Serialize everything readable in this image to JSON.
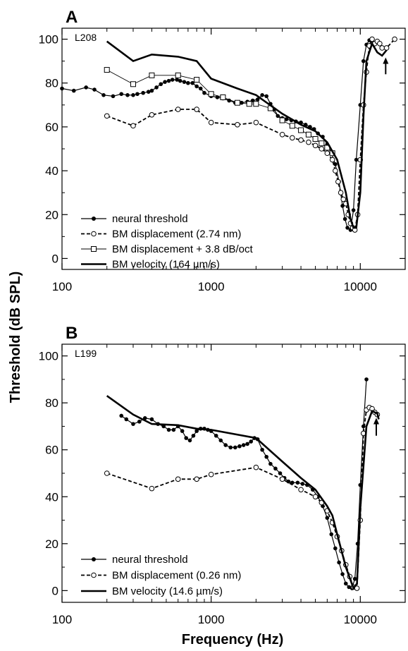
{
  "figure": {
    "ylabel": "Threshold (dB SPL)",
    "xlabel": "Frequency (Hz)"
  },
  "chart_data": [
    {
      "type": "line",
      "panel": "A",
      "id_label": "L208",
      "xscale": "log",
      "xlim": [
        100,
        20000
      ],
      "ylim": [
        -5,
        105
      ],
      "xticks": [
        100,
        1000,
        10000
      ],
      "xtick_labels": [
        "100",
        "1000",
        "10000"
      ],
      "yticks": [
        0,
        20,
        40,
        60,
        80,
        100
      ],
      "ytick_labels": [
        "0",
        "20",
        "40",
        "60",
        "80",
        "100"
      ],
      "legend_position": "bottom-left",
      "annotation": {
        "type": "arrow-up",
        "x": 14800,
        "y_from": 84,
        "y_to": 91
      },
      "series": [
        {
          "name": "neural threshold",
          "style": "solid-filled-dots",
          "x": [
            100,
            120,
            145,
            165,
            190,
            220,
            250,
            275,
            300,
            320,
            350,
            380,
            400,
            430,
            460,
            490,
            520,
            550,
            590,
            620,
            660,
            700,
            750,
            800,
            850,
            900,
            1000,
            1100,
            1200,
            1320,
            1450,
            1600,
            1750,
            1900,
            2050,
            2200,
            2350,
            2500,
            2650,
            2800,
            3000,
            3200,
            3450,
            3700,
            4000,
            4300,
            4600,
            4900,
            5200,
            5600,
            6000,
            6400,
            6800,
            7200,
            7600,
            7900,
            8200,
            8600,
            9000,
            9400,
            10000,
            10500,
            11000,
            11500,
            12000
          ],
          "y": [
            77.5,
            76.5,
            78,
            77,
            74.5,
            74,
            75,
            74.5,
            74.5,
            75,
            75.5,
            76,
            76.5,
            78,
            79.5,
            80.5,
            81,
            81.5,
            81.5,
            81,
            80.5,
            80,
            80,
            78.5,
            77.5,
            75.5,
            74,
            73.5,
            73,
            72,
            71,
            71,
            71.5,
            72,
            72.5,
            74.5,
            74,
            70.5,
            68,
            65,
            64,
            63.5,
            63,
            62.5,
            62,
            61,
            60,
            59,
            57,
            55.5,
            52,
            48,
            43,
            35,
            24,
            18,
            14,
            13,
            22,
            45,
            70,
            90,
            97.5,
            99.5,
            99.5
          ]
        },
        {
          "name": "BM displacement (2.74 nm)",
          "style": "dashed-open-circles",
          "x": [
            200,
            300,
            400,
            600,
            800,
            1000,
            1500,
            2000,
            3000,
            3500,
            4000,
            4500,
            5000,
            5500,
            6000,
            6500,
            6800,
            7100,
            7400,
            7700,
            8000,
            8300,
            8600,
            8900,
            9200,
            9600,
            10000,
            10500,
            11000,
            11500,
            12000,
            12500,
            13000,
            13500,
            14000,
            15000,
            17000
          ],
          "y": [
            65,
            60.5,
            65.5,
            68,
            68,
            62,
            61,
            62,
            56.5,
            55,
            54,
            53,
            51.5,
            50,
            48,
            45,
            40,
            35,
            30,
            27,
            25,
            20,
            16,
            14,
            13,
            20,
            45,
            70,
            85,
            97,
            100,
            98,
            99,
            98,
            96,
            96,
            100
          ]
        },
        {
          "name": "BM displacement + 3.8 dB/oct",
          "style": "thin-open-squares",
          "x": [
            200,
            300,
            400,
            600,
            800,
            1000,
            1200,
            1500,
            1800,
            2000,
            2500,
            3000,
            3500,
            4000,
            4500,
            5000,
            5500,
            6000,
            6500
          ],
          "y": [
            86,
            79.5,
            83.5,
            83.5,
            81.5,
            75,
            73.5,
            71,
            70.5,
            70.5,
            68.5,
            63,
            60.5,
            58.5,
            56.5,
            54.5,
            52.5,
            50.5,
            48
          ]
        },
        {
          "name": "BM velocity (164 µm/s)",
          "style": "thick-solid",
          "x": [
            200,
            300,
            400,
            600,
            800,
            1000,
            1500,
            2000,
            3000,
            4000,
            5000,
            6000,
            7000,
            8000,
            8600,
            9000,
            9400,
            10000,
            10500,
            11000,
            12000,
            13000,
            14000,
            15000
          ],
          "y": [
            99,
            90,
            93,
            92,
            90,
            82,
            77.5,
            74.5,
            66,
            61,
            58,
            53,
            45,
            30,
            18,
            14,
            14,
            30,
            65,
            90,
            98,
            94,
            92.5,
            95
          ]
        }
      ]
    },
    {
      "type": "line",
      "panel": "B",
      "id_label": "L199",
      "xscale": "log",
      "xlim": [
        100,
        20000
      ],
      "ylim": [
        -5,
        105
      ],
      "xticks": [
        100,
        1000,
        10000
      ],
      "xtick_labels": [
        "100",
        "1000",
        "10000"
      ],
      "yticks": [
        0,
        20,
        40,
        60,
        80,
        100
      ],
      "ytick_labels": [
        "0",
        "20",
        "40",
        "60",
        "80",
        "100"
      ],
      "legend_position": "bottom-left",
      "annotation": {
        "type": "arrow-up",
        "x": 12800,
        "y_from": 66,
        "y_to": 73
      },
      "series": [
        {
          "name": "neural threshold",
          "style": "solid-filled-dots",
          "x": [
            250,
            270,
            300,
            330,
            360,
            400,
            440,
            480,
            520,
            560,
            600,
            640,
            680,
            720,
            760,
            800,
            850,
            900,
            950,
            1000,
            1080,
            1160,
            1250,
            1350,
            1450,
            1550,
            1650,
            1750,
            1850,
            1950,
            2050,
            2200,
            2350,
            2500,
            2700,
            2900,
            3100,
            3300,
            3500,
            3800,
            4100,
            4400,
            4800,
            5200,
            5600,
            6000,
            6400,
            6800,
            7200,
            7600,
            8000,
            8400,
            8800,
            9200,
            9600,
            10000,
            10500,
            11000
          ],
          "y": [
            74.5,
            73,
            71,
            72,
            73.5,
            73,
            71,
            70,
            68.5,
            68.5,
            70,
            68,
            65,
            64,
            66,
            68,
            69,
            69,
            68.5,
            68,
            66,
            64,
            62,
            61,
            61,
            61.5,
            62,
            62.5,
            63.5,
            65,
            64.5,
            60,
            57,
            54,
            52,
            50,
            48,
            46.5,
            46,
            46,
            45.5,
            45,
            43,
            40,
            36,
            31,
            24,
            18,
            12,
            7,
            3,
            1.5,
            1,
            5,
            20,
            45,
            70,
            90
          ]
        },
        {
          "name": "BM displacement (0.26 nm)",
          "style": "dashed-open-circles",
          "x": [
            200,
            400,
            600,
            800,
            1000,
            2000,
            3000,
            4000,
            5000,
            5500,
            6000,
            6500,
            7000,
            7500,
            8000,
            8500,
            9000,
            9500,
            10000,
            10500,
            11000,
            11500,
            12000,
            12500,
            13000
          ],
          "y": [
            50,
            43.5,
            47.5,
            47.5,
            49.5,
            52.5,
            47.5,
            43,
            40,
            37.5,
            34,
            29,
            23,
            17,
            11,
            6,
            1.5,
            1,
            30,
            67,
            77,
            78,
            77.5,
            76,
            75
          ]
        },
        {
          "name": "BM velocity (14.6 µm/s)",
          "style": "thick-solid",
          "x": [
            200,
            300,
            400,
            600,
            800,
            1000,
            2000,
            3000,
            4000,
            5000,
            6000,
            6500,
            7000,
            8000,
            9000,
            9500,
            10000,
            11000,
            12000,
            13000,
            13300
          ],
          "y": [
            83,
            75,
            71,
            70.5,
            69,
            68.5,
            65,
            55,
            48,
            43,
            36,
            32,
            24,
            10,
            1,
            3,
            35,
            70,
            76.5,
            75.5,
            73
          ]
        }
      ]
    }
  ]
}
